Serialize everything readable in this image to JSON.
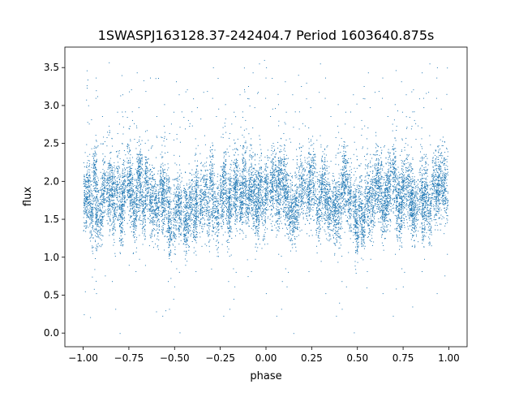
{
  "chart_data": {
    "type": "scatter",
    "title": "1SWASPJ163128.37-242404.7 Period 1603640.875s",
    "xlabel": "phase",
    "ylabel": "flux",
    "xlim": [
      -1.1,
      1.1
    ],
    "ylim": [
      -0.18,
      3.77
    ],
    "xticks": [
      -1.0,
      -0.75,
      -0.5,
      -0.25,
      0.0,
      0.25,
      0.5,
      0.75,
      1.0
    ],
    "xtick_labels": [
      "−1.00",
      "−0.75",
      "−0.50",
      "−0.25",
      "0.00",
      "0.25",
      "0.50",
      "0.75",
      "1.00"
    ],
    "yticks": [
      0.0,
      0.5,
      1.0,
      1.5,
      2.0,
      2.5,
      3.0,
      3.5
    ],
    "ytick_labels": [
      "0.0",
      "0.5",
      "1.0",
      "1.5",
      "2.0",
      "2.5",
      "3.0",
      "3.5"
    ],
    "grid": false,
    "legend": "none",
    "marker_color": "#1f77b4",
    "phase_range": [
      -1.0,
      1.0
    ],
    "flux_core_range": [
      1.3,
      2.3
    ],
    "flux_typical_center": 1.8,
    "flux_extremes": [
      0.0,
      3.7
    ],
    "points": [
      [
        -0.98,
        1.85
      ],
      [
        -0.97,
        2.2
      ],
      [
        -0.95,
        1.55
      ],
      [
        -0.93,
        3.2
      ],
      [
        -0.9,
        1.75
      ],
      [
        -0.87,
        2.05
      ],
      [
        -0.85,
        1.6
      ],
      [
        -0.82,
        2.4
      ],
      [
        -0.79,
        3.4
      ],
      [
        -0.76,
        1.45
      ],
      [
        -0.72,
        1.95
      ],
      [
        -0.68,
        2.3
      ],
      [
        -0.64,
        1.7
      ],
      [
        -0.6,
        2.6
      ],
      [
        -0.57,
        1.35
      ],
      [
        -0.53,
        1.2
      ],
      [
        -0.5,
        1.9
      ],
      [
        -0.47,
        1.3
      ],
      [
        -0.44,
        1.55
      ],
      [
        -0.4,
        2.0
      ],
      [
        -0.36,
        1.75
      ],
      [
        -0.32,
        2.15
      ],
      [
        -0.28,
        1.6
      ],
      [
        -0.24,
        1.85
      ],
      [
        -0.2,
        1.4
      ],
      [
        -0.16,
        2.25
      ],
      [
        -0.12,
        3.5
      ],
      [
        -0.08,
        1.65
      ],
      [
        -0.04,
        1.95
      ],
      [
        -0.01,
        3.6
      ],
      [
        0.02,
        1.75
      ],
      [
        0.06,
        2.2
      ],
      [
        0.1,
        1.5
      ],
      [
        0.14,
        1.9
      ],
      [
        0.18,
        2.45
      ],
      [
        0.22,
        3.3
      ],
      [
        0.26,
        1.7
      ],
      [
        0.3,
        2.05
      ],
      [
        0.34,
        1.55
      ],
      [
        0.38,
        2.35
      ],
      [
        0.42,
        1.8
      ],
      [
        0.46,
        1.25
      ],
      [
        0.5,
        1.45
      ],
      [
        0.54,
        1.15
      ],
      [
        0.58,
        1.9
      ],
      [
        0.62,
        1.6
      ],
      [
        0.66,
        2.1
      ],
      [
        0.7,
        1.75
      ],
      [
        0.74,
        2.4
      ],
      [
        0.78,
        1.55
      ],
      [
        0.82,
        2.0
      ],
      [
        0.86,
        3.1
      ],
      [
        0.9,
        1.65
      ],
      [
        0.94,
        2.2
      ],
      [
        0.97,
        1.85
      ],
      [
        0.99,
        3.5
      ],
      [
        -0.99,
        0.55
      ],
      [
        -0.8,
        0.0
      ],
      [
        0.15,
        0.0
      ],
      [
        0.4,
        0.4
      ],
      [
        -0.55,
        0.3
      ],
      [
        0.55,
        0.6
      ],
      [
        -0.1,
        0.75
      ],
      [
        0.8,
        0.35
      ],
      [
        -0.3,
        0.85
      ],
      [
        0.3,
        0.95
      ]
    ]
  }
}
